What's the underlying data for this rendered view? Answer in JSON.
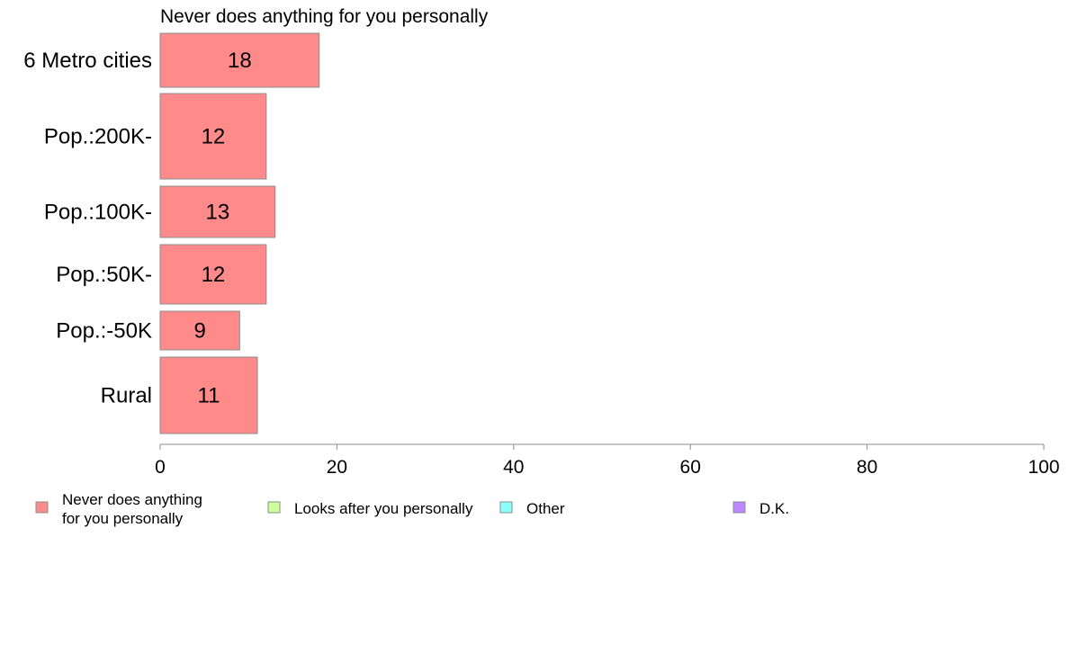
{
  "chart_data": {
    "type": "bar",
    "orientation": "horizontal",
    "title": "Never does anything for you personally",
    "categories": [
      "6 Metro cities",
      "Pop.:200K-",
      "Pop.:100K-",
      "Pop.:50K-",
      "Pop.:-50K",
      "Rural"
    ],
    "series": [
      {
        "name": "Never does anything for you personally",
        "values": [
          18,
          12,
          13,
          12,
          9,
          11
        ],
        "color": "#ff8a8a"
      }
    ],
    "data_labels": [
      "18",
      "12",
      "13",
      "12",
      "9",
      "11"
    ],
    "xlim": [
      0,
      100
    ],
    "x_ticks": [
      "0",
      "20",
      "40",
      "60",
      "80",
      "100"
    ],
    "grid": false,
    "legend": {
      "placement": "bottom",
      "items": [
        {
          "lines": [
            "Never does anything",
            "for you personally"
          ],
          "color": "#ff8a8a"
        },
        {
          "lines": [
            "Looks after you personally"
          ],
          "color": "#ccff99"
        },
        {
          "lines": [
            "Other"
          ],
          "color": "#8affff"
        },
        {
          "lines": [
            "D.K."
          ],
          "color": "#bb88ff"
        }
      ]
    }
  }
}
